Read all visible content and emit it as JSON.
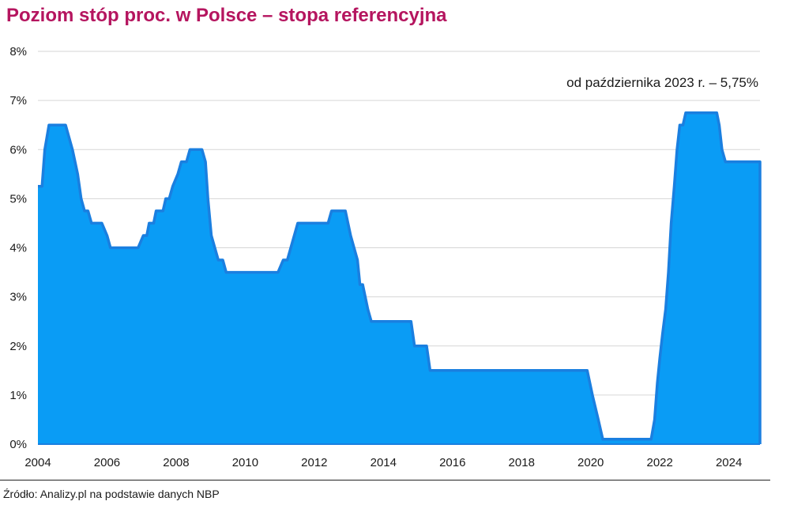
{
  "chart_data": {
    "type": "area",
    "title": "Poziom stóp proc. w Polsce – stopa referencyjna",
    "xlabel": "",
    "ylabel": "",
    "x_ticks": [
      "2004",
      "2006",
      "2008",
      "2010",
      "2012",
      "2014",
      "2016",
      "2018",
      "2020",
      "2022",
      "2024"
    ],
    "y_ticks": [
      "0%",
      "1%",
      "2%",
      "3%",
      "4%",
      "5%",
      "6%",
      "7%",
      "8%"
    ],
    "xlim": [
      2004.0,
      2024.9
    ],
    "ylim": [
      0,
      8
    ],
    "grid": "horizontal",
    "annotation": "od października 2023 r. – 5,75%",
    "series": [
      {
        "color": "#0a9cf5",
        "line_color": "#1a7fe0",
        "points": [
          [
            2004.0,
            5.25
          ],
          [
            2004.12,
            5.25
          ],
          [
            2004.2,
            6.0
          ],
          [
            2004.32,
            6.5
          ],
          [
            2004.8,
            6.5
          ],
          [
            2005.0,
            6.0
          ],
          [
            2005.15,
            5.5
          ],
          [
            2005.25,
            5.0
          ],
          [
            2005.35,
            4.75
          ],
          [
            2005.45,
            4.75
          ],
          [
            2005.55,
            4.5
          ],
          [
            2005.85,
            4.5
          ],
          [
            2006.0,
            4.25
          ],
          [
            2006.1,
            4.0
          ],
          [
            2006.9,
            4.0
          ],
          [
            2007.05,
            4.25
          ],
          [
            2007.15,
            4.25
          ],
          [
            2007.22,
            4.5
          ],
          [
            2007.35,
            4.5
          ],
          [
            2007.42,
            4.75
          ],
          [
            2007.62,
            4.75
          ],
          [
            2007.7,
            5.0
          ],
          [
            2007.8,
            5.0
          ],
          [
            2007.9,
            5.25
          ],
          [
            2008.05,
            5.5
          ],
          [
            2008.15,
            5.75
          ],
          [
            2008.3,
            5.75
          ],
          [
            2008.4,
            6.0
          ],
          [
            2008.75,
            6.0
          ],
          [
            2008.85,
            5.75
          ],
          [
            2008.92,
            5.0
          ],
          [
            2009.02,
            4.25
          ],
          [
            2009.12,
            4.0
          ],
          [
            2009.22,
            3.75
          ],
          [
            2009.35,
            3.75
          ],
          [
            2009.45,
            3.5
          ],
          [
            2010.95,
            3.5
          ],
          [
            2011.1,
            3.75
          ],
          [
            2011.22,
            3.75
          ],
          [
            2011.32,
            4.0
          ],
          [
            2011.42,
            4.25
          ],
          [
            2011.52,
            4.5
          ],
          [
            2012.4,
            4.5
          ],
          [
            2012.5,
            4.75
          ],
          [
            2012.9,
            4.75
          ],
          [
            2013.05,
            4.25
          ],
          [
            2013.25,
            3.75
          ],
          [
            2013.32,
            3.25
          ],
          [
            2013.4,
            3.25
          ],
          [
            2013.55,
            2.75
          ],
          [
            2013.65,
            2.5
          ],
          [
            2014.8,
            2.5
          ],
          [
            2014.9,
            2.0
          ],
          [
            2015.25,
            2.0
          ],
          [
            2015.35,
            1.5
          ],
          [
            2019.9,
            1.5
          ],
          [
            2020.05,
            1.0
          ],
          [
            2020.22,
            0.5
          ],
          [
            2020.35,
            0.1
          ],
          [
            2021.75,
            0.1
          ],
          [
            2021.85,
            0.5
          ],
          [
            2021.93,
            1.25
          ],
          [
            2022.0,
            1.75
          ],
          [
            2022.08,
            2.25
          ],
          [
            2022.17,
            2.75
          ],
          [
            2022.25,
            3.5
          ],
          [
            2022.33,
            4.5
          ],
          [
            2022.42,
            5.25
          ],
          [
            2022.5,
            6.0
          ],
          [
            2022.58,
            6.5
          ],
          [
            2022.67,
            6.5
          ],
          [
            2022.75,
            6.75
          ],
          [
            2023.65,
            6.75
          ],
          [
            2023.72,
            6.5
          ],
          [
            2023.8,
            6.0
          ],
          [
            2023.9,
            5.75
          ],
          [
            2024.9,
            5.75
          ]
        ]
      }
    ]
  },
  "source": "Źródło: Analizy.pl na podstawie danych NBP"
}
